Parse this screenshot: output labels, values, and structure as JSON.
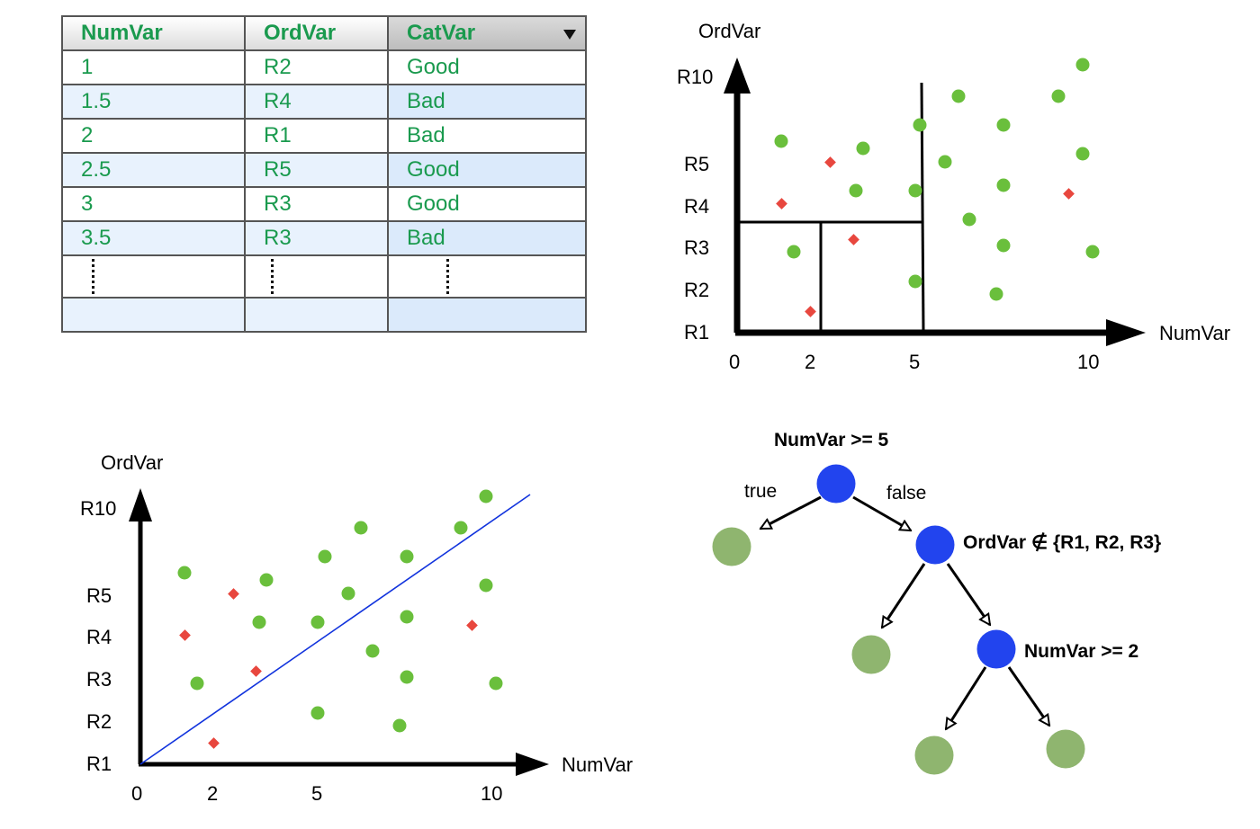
{
  "table": {
    "headers": [
      "NumVar",
      "OrdVar",
      "CatVar"
    ],
    "rows": [
      [
        "1",
        "R2",
        "Good"
      ],
      [
        "1.5",
        "R4",
        "Bad"
      ],
      [
        "2",
        "R1",
        "Bad"
      ],
      [
        "2.5",
        "R5",
        "Good"
      ],
      [
        "3",
        "R3",
        "Good"
      ],
      [
        "3.5",
        "R3",
        "Bad"
      ]
    ],
    "sort_icon": "sort-down-arrow-icon"
  },
  "plot_top": {
    "ylabel": "OrdVar",
    "xlabel": "NumVar",
    "yticks": [
      "R10",
      "R5",
      "R4",
      "R3",
      "R2",
      "R1"
    ],
    "xticks": [
      "0",
      "2",
      "5",
      "10"
    ],
    "partition": "axis-aligned split lines at NumVar = 5, OrdVar = R3/R4 and NumVar = 2"
  },
  "plot_bottom": {
    "ylabel": "OrdVar",
    "xlabel": "NumVar",
    "yticks": [
      "R10",
      "R5",
      "R4",
      "R3",
      "R2",
      "R1"
    ],
    "xticks": [
      "0",
      "2",
      "5",
      "10"
    ],
    "partition": "single oblique boundary line"
  },
  "tree": {
    "root_label": "NumVar >= 5",
    "true_label": "true",
    "false_label": "false",
    "node2_label": "OrdVar ∉ {R1, R2, R3}",
    "node3_label": "NumVar >= 2"
  },
  "colors": {
    "good_point": "#6abf3c",
    "bad_point": "#e8473e",
    "split_node": "#2244ee",
    "leaf_node": "#8fb56f",
    "table_text": "#1a9a4e",
    "boundary_line": "#1133dd"
  }
}
